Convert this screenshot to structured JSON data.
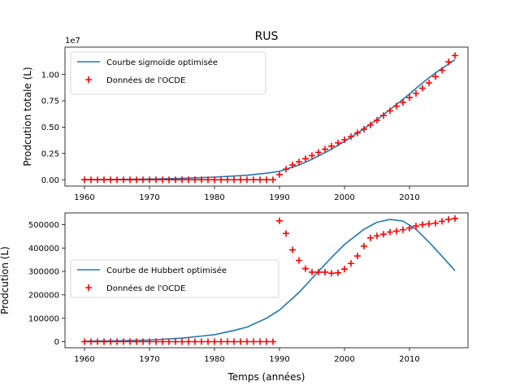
{
  "figure": {
    "title": "RUS",
    "xlabel": "Temps (années)"
  },
  "chart_data": [
    {
      "type": "line",
      "title": "RUS",
      "xlabel": "",
      "ylabel": "Prodcution totale (L)",
      "offset_label": "1e7",
      "xlim": [
        1957,
        2019
      ],
      "ylim": [
        -600000.0,
        12600000.0
      ],
      "xticks": [
        1960,
        1970,
        1980,
        1990,
        2000,
        2010
      ],
      "xtick_labels": [
        "1960",
        "1970",
        "1980",
        "1990",
        "2000",
        "2010"
      ],
      "yticks": [
        0,
        2500000,
        5000000,
        7500000,
        10000000
      ],
      "ytick_labels": [
        "0.00",
        "0.25",
        "0.50",
        "0.75",
        "1.00"
      ],
      "legend": {
        "position": "top-left",
        "entries": [
          "Courbe sigmoïde optimisée",
          "Données de l'OCDE"
        ]
      },
      "series": [
        {
          "name": "Courbe sigmoïde optimisée",
          "style": "line",
          "color": "#1f77b4",
          "x": [
            1960,
            1965,
            1970,
            1975,
            1980,
            1985,
            1988,
            1990,
            1993,
            1995,
            1998,
            2000,
            2003,
            2005,
            2008,
            2010,
            2012,
            2014,
            2017
          ],
          "y": [
            10000,
            30000,
            60000,
            130000,
            250000,
            430000,
            620000,
            800000,
            1400000,
            1950000,
            2900000,
            3650000,
            4850000,
            5700000,
            7150000,
            8150000,
            9200000,
            10150000,
            11400000
          ]
        },
        {
          "name": "Données de l'OCDE",
          "style": "marker",
          "marker": "+",
          "color": "#ff0000",
          "x": [
            1960,
            1961,
            1962,
            1963,
            1964,
            1965,
            1966,
            1967,
            1968,
            1969,
            1970,
            1971,
            1972,
            1973,
            1974,
            1975,
            1976,
            1977,
            1978,
            1979,
            1980,
            1981,
            1982,
            1983,
            1984,
            1985,
            1986,
            1987,
            1988,
            1989,
            1990,
            1991,
            1992,
            1993,
            1994,
            1995,
            1996,
            1997,
            1998,
            1999,
            2000,
            2001,
            2002,
            2003,
            2004,
            2005,
            2006,
            2007,
            2008,
            2009,
            2010,
            2011,
            2012,
            2013,
            2014,
            2015,
            2016,
            2017
          ],
          "y": [
            0,
            0,
            0,
            0,
            0,
            0,
            0,
            0,
            0,
            0,
            0,
            0,
            0,
            0,
            0,
            0,
            0,
            0,
            0,
            0,
            0,
            0,
            0,
            0,
            0,
            0,
            0,
            0,
            0,
            0,
            500000,
            1000000,
            1400000,
            1700000,
            2000000,
            2300000,
            2600000,
            2900000,
            3200000,
            3500000,
            3800000,
            4100000,
            4450000,
            4800000,
            5200000,
            5650000,
            6100000,
            6550000,
            7000000,
            7350000,
            7800000,
            8200000,
            8700000,
            9200000,
            9800000,
            10400000,
            11200000,
            11800000
          ]
        }
      ]
    },
    {
      "type": "line",
      "title": "",
      "xlabel": "Temps (années)",
      "ylabel": "Prodcution (L)",
      "xlim": [
        1957,
        2019
      ],
      "ylim": [
        -26000,
        550000
      ],
      "xticks": [
        1960,
        1970,
        1980,
        1990,
        2000,
        2010
      ],
      "xtick_labels": [
        "1960",
        "1970",
        "1980",
        "1990",
        "2000",
        "2010"
      ],
      "yticks": [
        0,
        100000,
        200000,
        300000,
        400000,
        500000
      ],
      "ytick_labels": [
        "0",
        "100000",
        "200000",
        "300000",
        "400000",
        "500000"
      ],
      "legend": {
        "position": "center-left",
        "entries": [
          "Courbe de Hubbert optimisée",
          "Données de l'OCDE"
        ]
      },
      "series": [
        {
          "name": "Courbe de Hubbert optimisée",
          "style": "line",
          "color": "#1f77b4",
          "x": [
            1960,
            1965,
            1970,
            1975,
            1980,
            1983,
            1985,
            1988,
            1990,
            1993,
            1995,
            1998,
            2000,
            2003,
            2005,
            2007,
            2009,
            2011,
            2013,
            2015,
            2017
          ],
          "y": [
            2000,
            4000,
            7000,
            15000,
            30000,
            48000,
            62000,
            100000,
            135000,
            210000,
            270000,
            360000,
            415000,
            480000,
            510000,
            522000,
            515000,
            480000,
            425000,
            365000,
            303000
          ]
        },
        {
          "name": "Données de l'OCDE",
          "style": "marker",
          "marker": "+",
          "color": "#ff0000",
          "x": [
            1960,
            1961,
            1962,
            1963,
            1964,
            1965,
            1966,
            1967,
            1968,
            1969,
            1970,
            1971,
            1972,
            1973,
            1974,
            1975,
            1976,
            1977,
            1978,
            1979,
            1980,
            1981,
            1982,
            1983,
            1984,
            1985,
            1986,
            1987,
            1988,
            1989,
            1990,
            1991,
            1992,
            1993,
            1994,
            1995,
            1996,
            1997,
            1998,
            1999,
            2000,
            2001,
            2002,
            2003,
            2004,
            2005,
            2006,
            2007,
            2008,
            2009,
            2010,
            2011,
            2012,
            2013,
            2014,
            2015,
            2016,
            2017
          ],
          "y": [
            0,
            0,
            0,
            0,
            0,
            0,
            0,
            0,
            0,
            0,
            0,
            0,
            0,
            0,
            0,
            0,
            0,
            0,
            0,
            0,
            0,
            0,
            0,
            0,
            0,
            0,
            0,
            0,
            0,
            0,
            516000,
            462000,
            392000,
            347000,
            312000,
            297000,
            297000,
            297000,
            292000,
            294000,
            310000,
            334000,
            366000,
            408000,
            443000,
            452000,
            459000,
            468000,
            472000,
            478000,
            485000,
            494000,
            500000,
            503000,
            506000,
            514000,
            522000,
            526000
          ]
        }
      ]
    }
  ]
}
